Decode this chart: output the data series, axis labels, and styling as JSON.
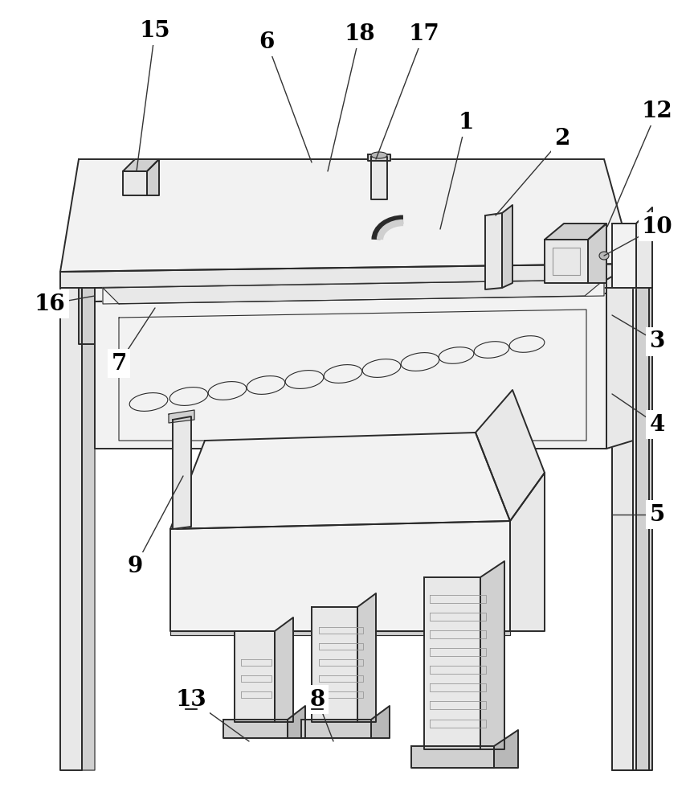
{
  "figure_width": 8.59,
  "figure_height": 10.0,
  "dpi": 100,
  "bg_color": "#ffffff",
  "lc": "#2a2a2a",
  "gray1": "#b8b8b8",
  "gray2": "#d0d0d0",
  "gray3": "#e8e8e8",
  "gray4": "#f2f2f2",
  "lw_main": 1.4,
  "lw_thin": 0.8,
  "label_fontsize": 20,
  "labels_data": [
    [
      "1",
      580,
      152,
      548,
      285,
      false
    ],
    [
      "2",
      700,
      172,
      617,
      268,
      false
    ],
    [
      "12",
      818,
      138,
      756,
      282,
      false
    ],
    [
      "10",
      818,
      282,
      752,
      318,
      false
    ],
    [
      "3",
      818,
      425,
      762,
      392,
      false
    ],
    [
      "4",
      818,
      528,
      762,
      490,
      false
    ],
    [
      "5",
      818,
      640,
      762,
      640,
      false
    ],
    [
      "6",
      332,
      52,
      388,
      202,
      false
    ],
    [
      "7",
      148,
      452,
      193,
      383,
      false
    ],
    [
      "8",
      395,
      870,
      415,
      922,
      true
    ],
    [
      "9",
      168,
      705,
      228,
      592,
      false
    ],
    [
      "13",
      238,
      870,
      310,
      922,
      true
    ],
    [
      "15",
      193,
      38,
      170,
      213,
      false
    ],
    [
      "16",
      62,
      378,
      118,
      368,
      false
    ],
    [
      "17",
      528,
      42,
      468,
      198,
      false
    ],
    [
      "18",
      448,
      42,
      408,
      213,
      false
    ]
  ]
}
